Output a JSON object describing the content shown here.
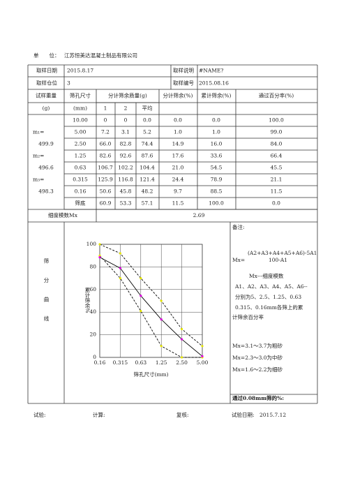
{
  "header": {
    "unit_label": "单　　位：",
    "unit": "江苏恒美达混凝土制品有限公司"
  },
  "info": {
    "rows": [
      [
        "取样日期",
        "2015.8.17",
        "取样说明",
        "#NAME?"
      ],
      [
        "取样仓位",
        "3",
        "取样编号",
        "2015.08.16"
      ]
    ]
  },
  "table": {
    "headers": [
      "试样重量",
      "筛孔尺寸",
      "分计筛余质量(g)",
      "分计筛余(%)",
      "累计筛余(%)",
      "通过百分率(%)"
    ],
    "subheaders": [
      "(g)",
      "(mm)",
      "1",
      "2",
      "平均"
    ],
    "rows": [
      [
        "10.00",
        "0",
        "0",
        "0.0",
        "0.0",
        "0.0",
        "100.0"
      ],
      [
        "5.00",
        "7.2",
        "3.1",
        "5.2",
        "1.0",
        "1.0",
        "99.0"
      ],
      [
        "2.50",
        "66.0",
        "82.8",
        "74.4",
        "14.9",
        "16.0",
        "84.0"
      ],
      [
        "1.25",
        "82.6",
        "92.6",
        "87.6",
        "17.6",
        "33.6",
        "66.4"
      ],
      [
        "0.63",
        "106.7",
        "102.2",
        "104.4",
        "21.0",
        "54.5",
        "45.5"
      ],
      [
        "0.315",
        "125.9",
        "116.8",
        "121.4",
        "24.4",
        "78.9",
        "21.1"
      ],
      [
        "0.16",
        "50.6",
        "45.8",
        "48.2",
        "9.7",
        "88.5",
        "11.5"
      ],
      [
        "筛底",
        "60.9",
        "53.3",
        "57.1",
        "11.5",
        "100.0",
        "0.0"
      ]
    ],
    "sample_weights": [
      "m₁=",
      "499.9",
      "m₂=",
      "496.6",
      "m₃=",
      "498.3"
    ]
  },
  "fineness": {
    "label": "细度模数Mx",
    "value": "2.69"
  },
  "section_label": "筛分曲线",
  "chart_data": {
    "type": "line",
    "x_label": "筛孔尺寸(mm)",
    "y_label": "累计筛余%",
    "categories": [
      "0.16",
      "0.315",
      "0.63",
      "1.25",
      "2.50",
      "5.00"
    ],
    "ylim": [
      0,
      100
    ],
    "yticks": [
      0,
      20,
      40,
      60,
      80,
      100
    ],
    "grid": true,
    "series": [
      {
        "color": "#000000",
        "dashed": true,
        "marker": "#e6e600",
        "values": [
          100,
          92,
          70,
          50,
          25,
          10
        ]
      },
      {
        "color": "#000000",
        "dashed": true,
        "marker": "#e6e600",
        "values": [
          90,
          70,
          41,
          10,
          0,
          0
        ]
      },
      {
        "color": "#000000",
        "dashed": false,
        "marker": "#e000e0",
        "values": [
          88.5,
          78.9,
          54.5,
          33.6,
          16.0,
          1.0
        ]
      }
    ]
  },
  "notes": [
    "备注:",
    "(A2+A3+A4+A5+A6)-5A1",
    "Mx=",
    "100-A1",
    "Mx---细度模数",
    "A1、A2、A3、A4、A5、A6--",
    "分别为5、2.5、1.25、0.63",
    "0.315、0.16mm各筛上的累",
    "计筛余百分率",
    "Mx=3.1～3.7为粗砂",
    "Mx=2.3～3.0为中砂",
    "Mx=1.6～2.2为细砂"
  ],
  "pass_label": "通过0.08mm筛的%:",
  "footer": [
    "试验:",
    "计算:",
    "复核:",
    "试验日期:",
    "2015.7.12"
  ]
}
